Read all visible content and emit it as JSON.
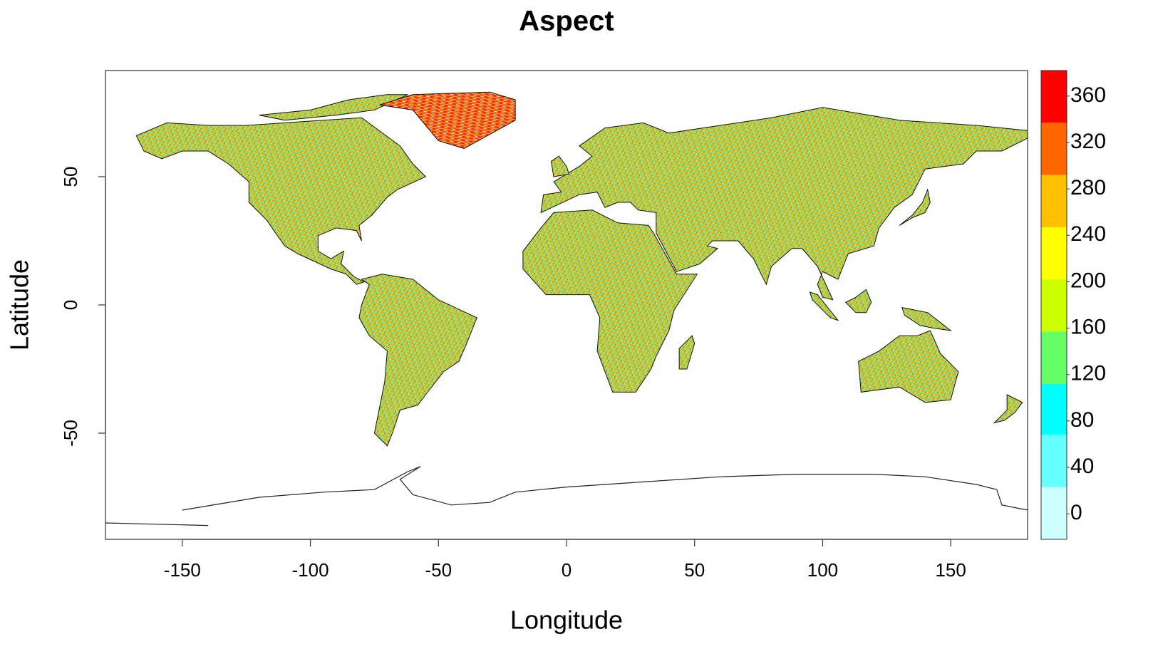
{
  "chart_data": {
    "type": "raster",
    "title": "Aspect",
    "x_label": "Longitude",
    "y_label": "Latitude",
    "xlim": [
      -180,
      180
    ],
    "xticks": [
      -150,
      -100,
      -50,
      0,
      50,
      100,
      150
    ],
    "ylim": [
      -91.4,
      91.4
    ],
    "yticks": [
      -50,
      0,
      50
    ],
    "colorbar": {
      "lim": [
        -22,
        382
      ],
      "ticks": [
        0,
        40,
        80,
        120,
        160,
        200,
        240,
        280,
        320,
        360
      ],
      "breaks": [
        -22,
        23,
        68,
        112,
        157,
        202,
        247,
        292,
        337,
        382
      ],
      "colors": [
        "#ccffff",
        "#66ffff",
        "#00ffff",
        "#66ff66",
        "#ccff00",
        "#ffff00",
        "#ffc000",
        "#ff6600",
        "#ff0000"
      ]
    }
  }
}
